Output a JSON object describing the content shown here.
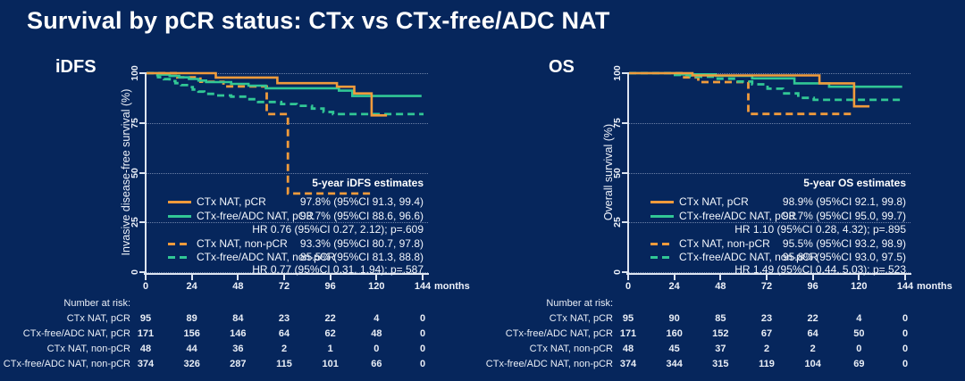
{
  "slide": {
    "title": "Survival by pCR status: CTx vs CTx-free/ADC NAT"
  },
  "colors": {
    "background": "#06265C",
    "orange": "#F09B3C",
    "green": "#31C795",
    "axis": "#DDE5F1",
    "text": "#FFFFFF"
  },
  "chart_data": [
    {
      "type": "line",
      "subtype": "kaplan-meier-step",
      "panel_title": "iDFS",
      "ylabel": "Invasive disease-free survival (%)",
      "xunit_label": "months",
      "xticks": [
        0,
        24,
        48,
        72,
        96,
        120,
        144
      ],
      "yticks": [
        100,
        75,
        50,
        25,
        0
      ],
      "xlim": [
        0,
        144
      ],
      "ylim": [
        0,
        100
      ],
      "grid": "horizontal-dotted",
      "estimates_header": "5-year iDFS estimates",
      "hr_pcr": "HR 0.76 (95%CI 0.27, 2.12); p=.609",
      "hr_nonpcr": "HR 0.77 (95%CI 0.31, 1.94); p=.587",
      "series": [
        {
          "name": "CTx NAT, pCR",
          "color": "orange",
          "dash": "solid",
          "estimate": "97.8% (95%CI 91.3, 99.4)",
          "points": [
            [
              0,
              100
            ],
            [
              36,
              100
            ],
            [
              36,
              97.8
            ],
            [
              68,
              97.8
            ],
            [
              68,
              95
            ],
            [
              99,
              95
            ],
            [
              99,
              93.2
            ],
            [
              108,
              93.2
            ],
            [
              108,
              89.8
            ],
            [
              117,
              89.8
            ],
            [
              117,
              78.8
            ],
            [
              125,
              78.8
            ]
          ]
        },
        {
          "name": "CTx-free/ADC NAT, pCR",
          "color": "green",
          "dash": "solid",
          "estimate": "93.7% (95%CI 88.6, 96.6)",
          "points": [
            [
              0,
              100
            ],
            [
              7,
              100
            ],
            [
              7,
              99.3
            ],
            [
              12,
              99.3
            ],
            [
              12,
              98.6
            ],
            [
              17,
              98.6
            ],
            [
              17,
              97.9
            ],
            [
              22,
              97.9
            ],
            [
              22,
              97.1
            ],
            [
              27,
              97.1
            ],
            [
              27,
              96.3
            ],
            [
              31,
              96.3
            ],
            [
              31,
              95.5
            ],
            [
              44,
              95.5
            ],
            [
              44,
              94.6
            ],
            [
              53,
              94.6
            ],
            [
              53,
              93.7
            ],
            [
              62,
              93.7
            ],
            [
              62,
              92.4
            ],
            [
              100,
              92.4
            ],
            [
              100,
              91.2
            ],
            [
              107,
              91.2
            ],
            [
              107,
              88.5
            ],
            [
              143,
              88.5
            ]
          ]
        },
        {
          "name": "CTx NAT, non-pCR",
          "color": "orange",
          "dash": "dashed",
          "estimate": "93.3% (95%CI 80.7, 97.8)",
          "points": [
            [
              0,
              100
            ],
            [
              16,
              100
            ],
            [
              16,
              97.9
            ],
            [
              28,
              97.9
            ],
            [
              28,
              95.7
            ],
            [
              40,
              95.7
            ],
            [
              40,
              93.3
            ],
            [
              62.5,
              93.3
            ],
            [
              62.5,
              79.4
            ],
            [
              73.5,
              79.4
            ],
            [
              73.5,
              39.5
            ],
            [
              118,
              39.5
            ]
          ]
        },
        {
          "name": "CTx-free/ADC NAT, non-pCR",
          "color": "green",
          "dash": "dashed",
          "estimate": "85.5% (95%CI 81.3, 88.8)",
          "points": [
            [
              0,
              100
            ],
            [
              3,
              100
            ],
            [
              3,
              99
            ],
            [
              6,
              99
            ],
            [
              6,
              98
            ],
            [
              9,
              98
            ],
            [
              9,
              97
            ],
            [
              12,
              97
            ],
            [
              12,
              96
            ],
            [
              15,
              96
            ],
            [
              15,
              95
            ],
            [
              18,
              95
            ],
            [
              18,
              94
            ],
            [
              21,
              94
            ],
            [
              21,
              93
            ],
            [
              24,
              93
            ],
            [
              24,
              91.8
            ],
            [
              27,
              91.8
            ],
            [
              27,
              90.7
            ],
            [
              30,
              90.7
            ],
            [
              30,
              89.6
            ],
            [
              36,
              89.6
            ],
            [
              36,
              88.8
            ],
            [
              44,
              88.8
            ],
            [
              44,
              88.2
            ],
            [
              52,
              88.2
            ],
            [
              52,
              86.9
            ],
            [
              58,
              86.9
            ],
            [
              58,
              85.5
            ],
            [
              70,
              85.5
            ],
            [
              70,
              84.5
            ],
            [
              78,
              84.5
            ],
            [
              78,
              83.6
            ],
            [
              86,
              83.6
            ],
            [
              86,
              82.2
            ],
            [
              92,
              82.2
            ],
            [
              92,
              80.5
            ],
            [
              97,
              80.5
            ],
            [
              97,
              79.4
            ],
            [
              144,
              79.4
            ]
          ]
        }
      ],
      "risk_table": {
        "title": "Number at risk:",
        "timepoints": [
          0,
          24,
          48,
          72,
          96,
          120,
          144
        ],
        "rows": [
          {
            "label": "CTx NAT, pCR",
            "values": [
              95,
              89,
              84,
              23,
              22,
              4,
              0
            ]
          },
          {
            "label": "CTx-free/ADC NAT, pCR",
            "values": [
              171,
              156,
              146,
              64,
              62,
              48,
              0
            ]
          },
          {
            "label": "CTx NAT, non-pCR",
            "values": [
              48,
              44,
              36,
              2,
              1,
              0,
              0
            ]
          },
          {
            "label": "CTx-free/ADC NAT, non-pCR",
            "values": [
              374,
              326,
              287,
              115,
              101,
              66,
              0
            ]
          }
        ]
      }
    },
    {
      "type": "line",
      "subtype": "kaplan-meier-step",
      "panel_title": "OS",
      "ylabel": "Overall survival (%)",
      "xunit_label": "months",
      "xticks": [
        0,
        24,
        48,
        72,
        96,
        120,
        144
      ],
      "yticks": [
        100,
        75,
        50,
        25,
        0
      ],
      "xlim": [
        0,
        144
      ],
      "ylim": [
        0,
        100
      ],
      "grid": "horizontal-dotted",
      "estimates_header": "5-year OS estimates",
      "hr_pcr": "HR 1.10 (95%CI 0.28, 4.32); p=.895",
      "hr_nonpcr": "HR 1.49 (95%CI 0.44, 5.03); p=.523",
      "series": [
        {
          "name": "CTx NAT, pCR",
          "color": "orange",
          "dash": "solid",
          "estimate": "98.9% (95%CI 92.1, 99.8)",
          "points": [
            [
              0,
              100
            ],
            [
              33,
              100
            ],
            [
              33,
              98.9
            ],
            [
              99,
              98.9
            ],
            [
              99,
              94.9
            ],
            [
              117,
              94.9
            ],
            [
              117,
              83.3
            ],
            [
              125,
              83.3
            ]
          ]
        },
        {
          "name": "CTx-free/ADC NAT, pCR",
          "color": "green",
          "dash": "solid",
          "estimate": "98.7% (95%CI 95.0, 99.7)",
          "points": [
            [
              0,
              100
            ],
            [
              26,
              100
            ],
            [
              26,
              99.4
            ],
            [
              45,
              99.4
            ],
            [
              45,
              98.7
            ],
            [
              64,
              98.7
            ],
            [
              64,
              97.4
            ],
            [
              86,
              97.4
            ],
            [
              86,
              94.9
            ],
            [
              104,
              94.9
            ],
            [
              104,
              93.2
            ],
            [
              142,
              93.2
            ]
          ]
        },
        {
          "name": "CTx NAT, non-pCR",
          "color": "orange",
          "dash": "dashed",
          "estimate": "95.5% (95%CI 93.2, 98.9)",
          "points": [
            [
              0,
              100
            ],
            [
              28,
              100
            ],
            [
              28,
              97.9
            ],
            [
              36,
              97.9
            ],
            [
              36,
              95.5
            ],
            [
              62,
              95.5
            ],
            [
              62,
              79.5
            ],
            [
              116,
              79.5
            ]
          ]
        },
        {
          "name": "CTx-free/ADC NAT, non-pCR",
          "color": "green",
          "dash": "dashed",
          "estimate": "95.8% (95%CI 93.0, 97.5)",
          "points": [
            [
              0,
              100
            ],
            [
              22,
              100
            ],
            [
              22,
              99.1
            ],
            [
              32,
              99.1
            ],
            [
              32,
              98.2
            ],
            [
              45,
              98.2
            ],
            [
              45,
              97.2
            ],
            [
              56,
              97.2
            ],
            [
              56,
              95.8
            ],
            [
              64,
              95.8
            ],
            [
              64,
              94.4
            ],
            [
              72,
              94.4
            ],
            [
              72,
              92.2
            ],
            [
              80,
              92.2
            ],
            [
              80,
              89.8
            ],
            [
              88,
              89.8
            ],
            [
              88,
              87.6
            ],
            [
              96,
              87.6
            ],
            [
              96,
              86.6
            ],
            [
              141,
              86.6
            ]
          ]
        }
      ],
      "risk_table": {
        "title": "Number at risk:",
        "timepoints": [
          0,
          24,
          48,
          72,
          96,
          120,
          144
        ],
        "rows": [
          {
            "label": "CTx NAT, pCR",
            "values": [
              95,
              90,
              85,
              23,
              22,
              4,
              0
            ]
          },
          {
            "label": "CTx-free/ADC NAT, pCR",
            "values": [
              171,
              160,
              152,
              67,
              64,
              50,
              0
            ]
          },
          {
            "label": "CTx NAT, non-pCR",
            "values": [
              48,
              45,
              37,
              2,
              2,
              0,
              0
            ]
          },
          {
            "label": "CTx-free/ADC NAT, non-pCR",
            "values": [
              374,
              344,
              315,
              119,
              104,
              69,
              0
            ]
          }
        ]
      }
    }
  ]
}
